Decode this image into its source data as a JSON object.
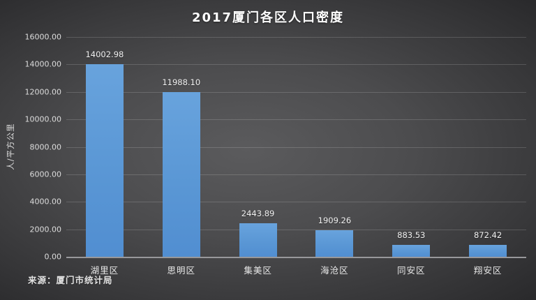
{
  "chart_data": {
    "type": "bar",
    "title": "2017厦门各区人口密度",
    "categories": [
      "湖里区",
      "思明区",
      "集美区",
      "海沧区",
      "同安区",
      "翔安区"
    ],
    "values": [
      14002.98,
      11988.1,
      2443.89,
      1909.26,
      883.53,
      872.42
    ],
    "value_labels": [
      "14002.98",
      "11988.10",
      "2443.89",
      "1909.26",
      "883.53",
      "872.42"
    ],
    "xlabel": "",
    "ylabel": "人/平方公里",
    "ylim": [
      0,
      16000
    ],
    "ytick_step": 2000,
    "ytick_labels": [
      "0.00",
      "2000.00",
      "4000.00",
      "6000.00",
      "8000.00",
      "10000.00",
      "12000.00",
      "14000.00",
      "16000.00"
    ],
    "grid": true,
    "legend": false,
    "bar_color": "#5b97d5",
    "background_color": "#48484a",
    "gridline_color": "#6f6f71",
    "axisline_color": "#98989b",
    "text_color": "#e8e8e8"
  },
  "source_note": "来源：厦门市统计局"
}
